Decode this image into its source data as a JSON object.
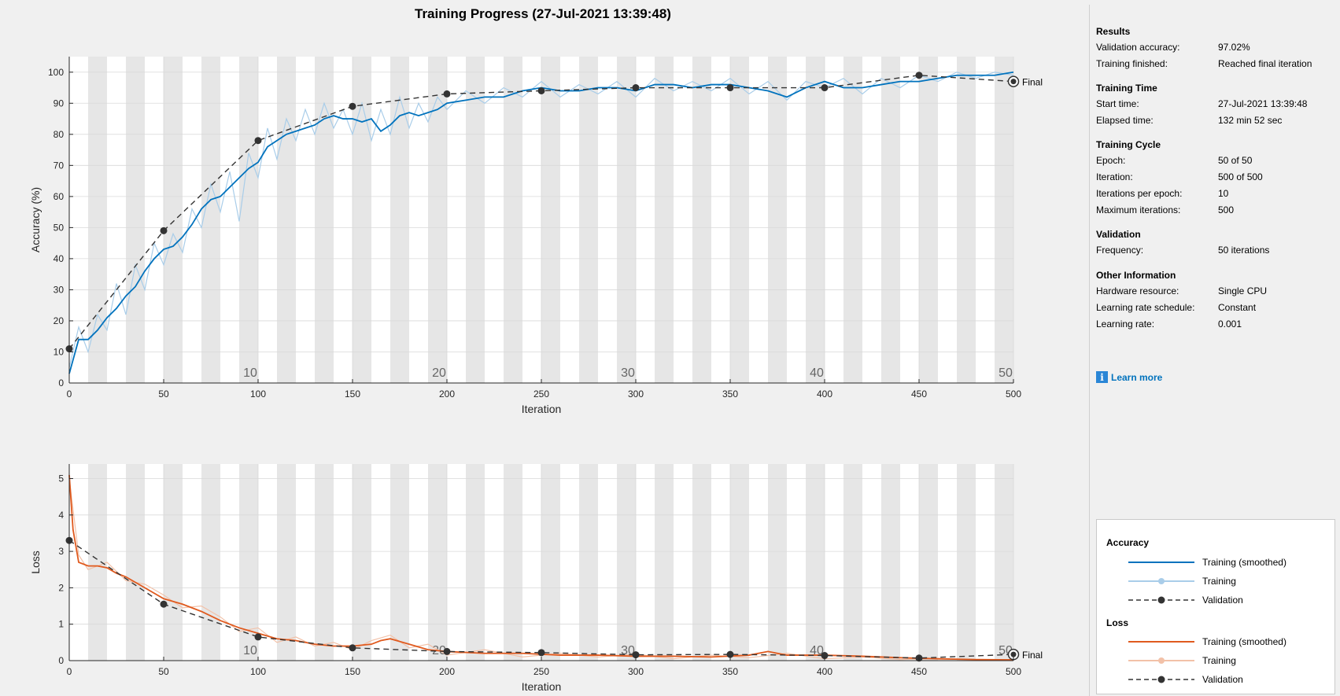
{
  "window": {
    "title": "Training Progress (27-Jul-2021 13:39:48)"
  },
  "colors": {
    "accuracy_smoothed": "#0072bd",
    "accuracy_raw": "#a9cde9",
    "loss_smoothed": "#e05a1e",
    "loss_raw": "#f2c1a8",
    "validation": "#333333",
    "epoch_band": "#e6e6e6"
  },
  "chart_data": [
    {
      "type": "line",
      "name": "accuracy",
      "xlabel": "Iteration",
      "ylabel": "Accuracy (%)",
      "xlim": [
        0,
        500
      ],
      "ylim": [
        0,
        105
      ],
      "xticks": [
        0,
        50,
        100,
        150,
        200,
        250,
        300,
        350,
        400,
        450,
        500
      ],
      "yticks": [
        0,
        10,
        20,
        30,
        40,
        50,
        60,
        70,
        80,
        90,
        100
      ],
      "epoch_labels": [
        10,
        20,
        30,
        40,
        50
      ],
      "iterations_per_epoch": 10,
      "final_label": "Final",
      "series": [
        {
          "name": "Training (smoothed)",
          "x": [
            0,
            5,
            10,
            15,
            20,
            25,
            30,
            35,
            40,
            45,
            50,
            55,
            60,
            65,
            70,
            75,
            80,
            85,
            90,
            95,
            100,
            105,
            110,
            115,
            120,
            125,
            130,
            135,
            140,
            145,
            150,
            155,
            160,
            165,
            170,
            175,
            180,
            185,
            190,
            195,
            200,
            210,
            220,
            230,
            240,
            250,
            260,
            270,
            280,
            290,
            300,
            310,
            320,
            330,
            340,
            350,
            360,
            370,
            380,
            390,
            400,
            410,
            420,
            430,
            440,
            450,
            460,
            470,
            480,
            490,
            500
          ],
          "y": [
            3,
            14,
            14,
            17,
            21,
            24,
            28,
            31,
            36,
            40,
            43,
            44,
            47,
            51,
            56,
            59,
            60,
            63,
            66,
            69,
            71,
            76,
            78,
            80,
            81,
            82,
            83,
            85,
            86,
            85,
            85,
            84,
            85,
            81,
            83,
            86,
            87,
            86,
            87,
            88,
            90,
            91,
            92,
            92,
            94,
            95,
            94,
            94,
            95,
            95,
            94,
            96,
            96,
            95,
            96,
            96,
            95,
            94,
            92,
            95,
            97,
            95,
            95,
            96,
            97,
            97,
            98,
            99,
            99,
            99,
            100
          ]
        },
        {
          "name": "Training",
          "x": [
            0,
            5,
            10,
            15,
            20,
            25,
            30,
            35,
            40,
            45,
            50,
            55,
            60,
            65,
            70,
            75,
            80,
            85,
            90,
            95,
            100,
            105,
            110,
            115,
            120,
            125,
            130,
            135,
            140,
            145,
            150,
            155,
            160,
            165,
            170,
            175,
            180,
            185,
            190,
            195,
            200,
            210,
            220,
            230,
            240,
            250,
            260,
            270,
            280,
            290,
            300,
            310,
            320,
            330,
            340,
            350,
            360,
            370,
            380,
            390,
            400,
            410,
            420,
            430,
            440,
            450,
            460,
            470,
            480,
            490,
            500
          ],
          "y": [
            5,
            18,
            10,
            22,
            17,
            32,
            22,
            38,
            30,
            45,
            38,
            48,
            42,
            56,
            50,
            64,
            55,
            68,
            52,
            74,
            66,
            82,
            72,
            85,
            78,
            88,
            80,
            90,
            82,
            88,
            80,
            90,
            78,
            88,
            80,
            92,
            82,
            90,
            84,
            92,
            88,
            94,
            90,
            95,
            92,
            97,
            92,
            96,
            93,
            97,
            92,
            98,
            94,
            97,
            94,
            98,
            93,
            97,
            91,
            97,
            95,
            98,
            93,
            98,
            95,
            99,
            97,
            100,
            98,
            100,
            99
          ]
        },
        {
          "name": "Validation",
          "x": [
            0,
            50,
            100,
            150,
            200,
            250,
            300,
            350,
            400,
            450,
            500
          ],
          "y": [
            11,
            49,
            78,
            89,
            93,
            94,
            95,
            95,
            95,
            99,
            97
          ]
        }
      ]
    },
    {
      "type": "line",
      "name": "loss",
      "xlabel": "Iteration",
      "ylabel": "Loss",
      "xlim": [
        0,
        500
      ],
      "ylim": [
        0,
        5.4
      ],
      "xticks": [
        0,
        50,
        100,
        150,
        200,
        250,
        300,
        350,
        400,
        450,
        500
      ],
      "yticks": [
        0,
        1,
        2,
        3,
        4,
        5
      ],
      "epoch_labels": [
        10,
        20,
        30,
        40,
        50
      ],
      "iterations_per_epoch": 10,
      "final_label": "Final",
      "series": [
        {
          "name": "Training (smoothed)",
          "x": [
            0,
            2,
            5,
            10,
            15,
            20,
            25,
            30,
            40,
            50,
            60,
            70,
            80,
            90,
            100,
            110,
            120,
            130,
            140,
            150,
            160,
            165,
            170,
            180,
            190,
            200,
            220,
            240,
            260,
            280,
            300,
            320,
            340,
            360,
            370,
            380,
            400,
            420,
            440,
            460,
            480,
            500
          ],
          "y": [
            5.1,
            3.6,
            2.7,
            2.6,
            2.6,
            2.55,
            2.4,
            2.3,
            2.0,
            1.7,
            1.55,
            1.35,
            1.1,
            0.9,
            0.75,
            0.6,
            0.55,
            0.45,
            0.4,
            0.4,
            0.45,
            0.55,
            0.6,
            0.45,
            0.3,
            0.25,
            0.2,
            0.2,
            0.15,
            0.15,
            0.12,
            0.12,
            0.1,
            0.15,
            0.25,
            0.15,
            0.15,
            0.12,
            0.08,
            0.05,
            0.03,
            0.02
          ]
        },
        {
          "name": "Training",
          "x": [
            0,
            5,
            10,
            20,
            30,
            40,
            50,
            60,
            70,
            80,
            90,
            100,
            110,
            120,
            130,
            140,
            150,
            160,
            170,
            180,
            190,
            200,
            220,
            240,
            260,
            280,
            300,
            320,
            340,
            360,
            380,
            400,
            420,
            440,
            460,
            480,
            500
          ],
          "y": [
            5.0,
            2.9,
            2.5,
            2.7,
            2.2,
            2.1,
            1.8,
            1.45,
            1.5,
            1.2,
            0.8,
            0.9,
            0.5,
            0.65,
            0.4,
            0.5,
            0.3,
            0.55,
            0.7,
            0.35,
            0.45,
            0.15,
            0.3,
            0.1,
            0.2,
            0.1,
            0.18,
            0.05,
            0.15,
            0.08,
            0.2,
            0.05,
            0.1,
            0.03,
            0.06,
            0.02,
            0.03
          ]
        },
        {
          "name": "Validation",
          "x": [
            0,
            50,
            100,
            150,
            200,
            250,
            300,
            350,
            400,
            450,
            500
          ],
          "y": [
            3.3,
            1.55,
            0.65,
            0.35,
            0.25,
            0.22,
            0.16,
            0.17,
            0.14,
            0.07,
            0.17
          ]
        }
      ]
    }
  ],
  "info_panel": {
    "results": {
      "heading": "Results",
      "rows": [
        {
          "k": "Validation accuracy:",
          "v": "97.02%"
        },
        {
          "k": "Training finished:",
          "v": "Reached final iteration"
        }
      ]
    },
    "training_time": {
      "heading": "Training Time",
      "rows": [
        {
          "k": "Start time:",
          "v": "27-Jul-2021 13:39:48"
        },
        {
          "k": "Elapsed time:",
          "v": "132 min 52 sec"
        }
      ]
    },
    "training_cycle": {
      "heading": "Training Cycle",
      "rows": [
        {
          "k": "Epoch:",
          "v": "50 of 50"
        },
        {
          "k": "Iteration:",
          "v": "500 of 500"
        },
        {
          "k": "Iterations per epoch:",
          "v": "10"
        },
        {
          "k": "Maximum iterations:",
          "v": "500"
        }
      ]
    },
    "validation": {
      "heading": "Validation",
      "rows": [
        {
          "k": "Frequency:",
          "v": "50 iterations"
        }
      ]
    },
    "other": {
      "heading": "Other Information",
      "rows": [
        {
          "k": "Hardware resource:",
          "v": "Single CPU"
        },
        {
          "k": "Learning rate schedule:",
          "v": "Constant"
        },
        {
          "k": "Learning rate:",
          "v": "0.001"
        }
      ]
    },
    "learn_more": "Learn more"
  },
  "legend": {
    "accuracy_title": "Accuracy",
    "loss_title": "Loss",
    "training_smoothed": "Training (smoothed)",
    "training": "Training",
    "validation": "Validation"
  }
}
